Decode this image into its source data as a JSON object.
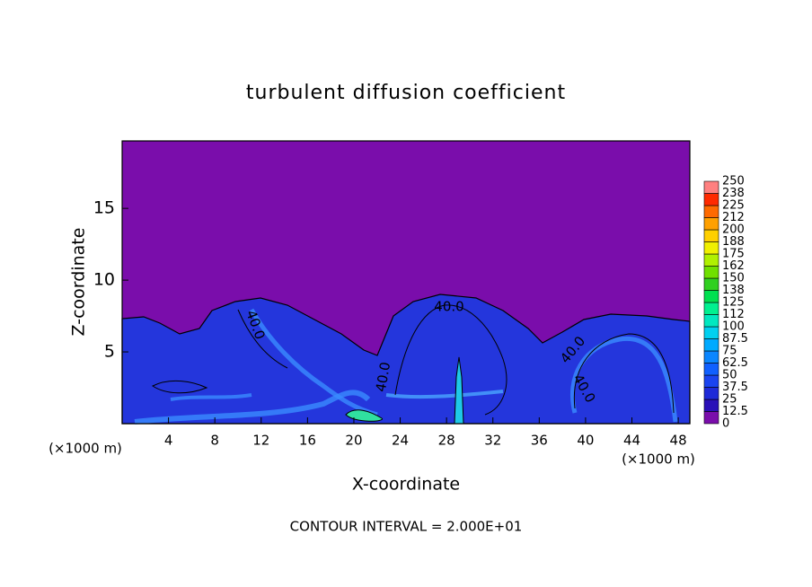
{
  "chart_data": {
    "type": "contour",
    "title": "turbulent diffusion coefficient",
    "x_label": "X-coordinate",
    "y_label": "Z-coordinate",
    "x_unit": "(×1000 m)",
    "y_unit": "(×1000 m)",
    "footnote": "CONTOUR INTERVAL = 2.000E+01",
    "xlim": [
      0,
      49
    ],
    "xticks": [
      4,
      8,
      12,
      16,
      20,
      24,
      28,
      32,
      36,
      40,
      44,
      48
    ],
    "ylim": [
      0,
      19.7
    ],
    "yticks": [
      5,
      10,
      15
    ],
    "colorbar": {
      "levels": [
        0,
        12.5,
        25,
        37.5,
        50,
        62.5,
        75,
        87.5,
        100,
        {
          "value": 112.5,
          "label": "112"
        },
        125,
        {
          "value": 137.5,
          "label": "138"
        },
        150,
        {
          "value": 162.5,
          "label": "162"
        },
        175,
        {
          "value": 187.5,
          "label": "188"
        },
        200,
        {
          "value": 212.5,
          "label": "212"
        },
        225,
        {
          "value": 237.5,
          "label": "238"
        },
        250
      ],
      "colors": [
        "#7a0dab",
        "#2a10b8",
        "#1e2ad8",
        "#1a44f0",
        "#1060ff",
        "#0a86ff",
        "#00aaff",
        "#00d0f0",
        "#00e8c0",
        "#00f090",
        "#00e050",
        "#30d020",
        "#70e000",
        "#b0f000",
        "#f0f000",
        "#ffd000",
        "#ffa000",
        "#ff6a00",
        "#ff2a00",
        "#ff8080"
      ]
    },
    "contour_labels": [
      "40.0",
      "40.0",
      "40.0",
      "40.0",
      "40.0"
    ]
  }
}
